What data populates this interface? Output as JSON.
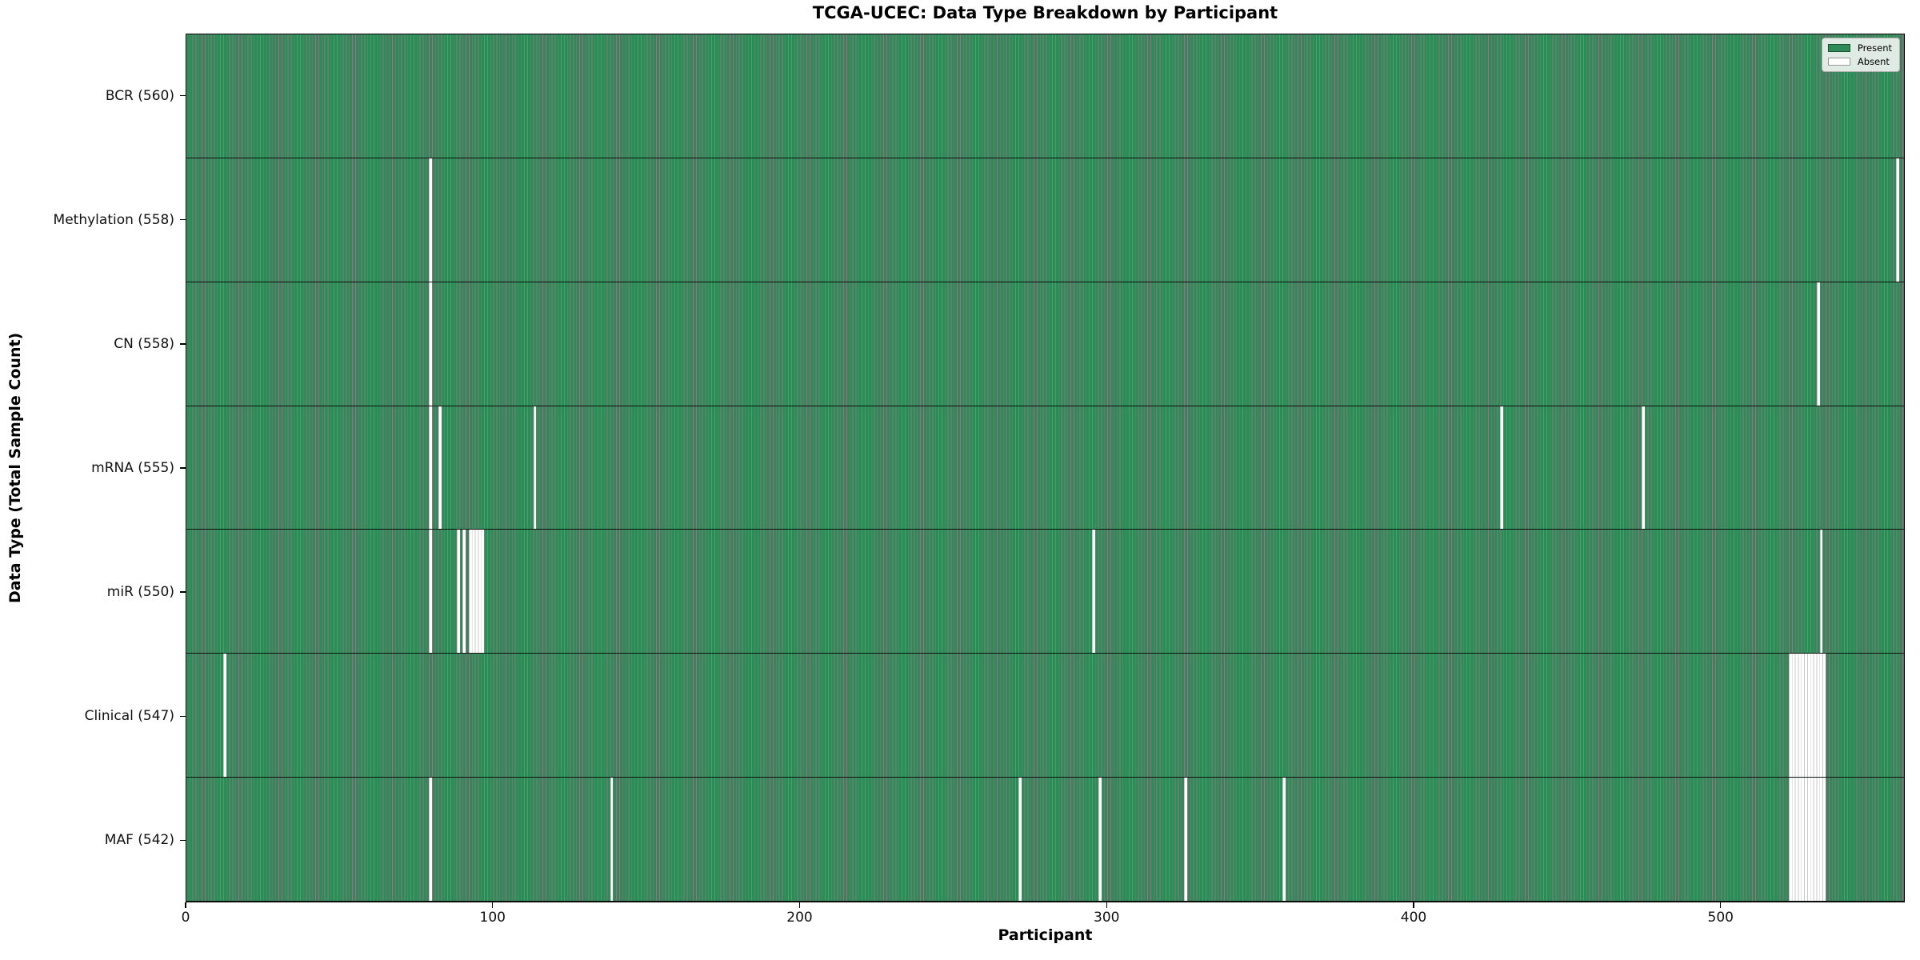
{
  "chart_data": {
    "type": "heatmap",
    "title": "TCGA-UCEC: Data Type Breakdown by Participant",
    "xlabel": "Participant",
    "ylabel": "Data Type (Total Sample Count)",
    "x_ticks": [
      0,
      100,
      200,
      300,
      400,
      500
    ],
    "xlim": [
      0,
      560
    ],
    "n_participants": 560,
    "present_color": "#2e8b57",
    "absent_color": "#ffffff",
    "bar_edge_color": "rgba(0,0,0,0.5)",
    "absent_edge_color": "#c8c8c8",
    "grid": false,
    "legend": {
      "position": "upper right",
      "entries": [
        {
          "label": "Present",
          "color": "#2e8b57"
        },
        {
          "label": "Absent",
          "color": "#ffffff"
        }
      ]
    },
    "rows": [
      {
        "data_type": "BCR",
        "label": "BCR (560)",
        "total_samples": 560,
        "absent_participants": []
      },
      {
        "data_type": "Methylation",
        "label": "Methylation (558)",
        "total_samples": 558,
        "absent_participants": [
          79,
          557
        ]
      },
      {
        "data_type": "CN",
        "label": "CN (558)",
        "total_samples": 558,
        "absent_participants": [
          79,
          531
        ]
      },
      {
        "data_type": "mRNA",
        "label": "mRNA (555)",
        "total_samples": 555,
        "absent_participants": [
          79,
          82,
          113,
          428,
          474
        ]
      },
      {
        "data_type": "miR",
        "label": "miR (550)",
        "total_samples": 550,
        "absent_participants": [
          79,
          88,
          90,
          92,
          93,
          94,
          95,
          96,
          295,
          532
        ]
      },
      {
        "data_type": "Clinical",
        "label": "Clinical (547)",
        "total_samples": 547,
        "absent_participants": [
          12,
          522,
          523,
          524,
          525,
          526,
          527,
          528,
          529,
          530,
          531,
          532,
          533
        ]
      },
      {
        "data_type": "MAF",
        "label": "MAF (542)",
        "total_samples": 542,
        "absent_participants": [
          79,
          138,
          271,
          297,
          325,
          357,
          522,
          523,
          524,
          525,
          526,
          527,
          528,
          529,
          530,
          531,
          532,
          533
        ]
      }
    ]
  }
}
